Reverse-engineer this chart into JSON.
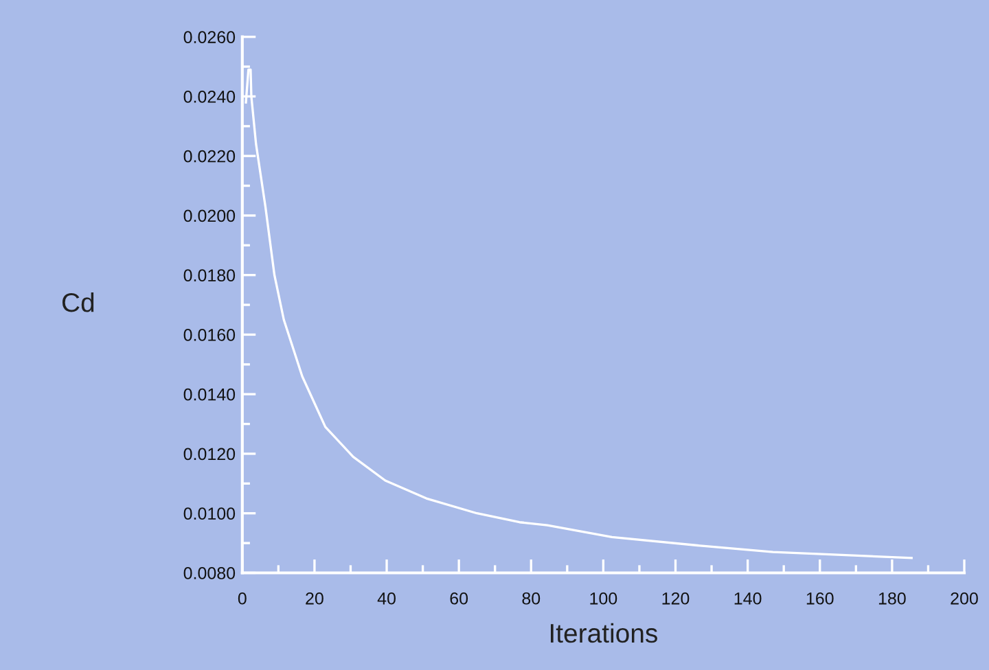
{
  "chart_data": {
    "type": "line",
    "xlabel": "Iterations",
    "ylabel": "Cd",
    "color": "#ffffff",
    "x": [
      1,
      1.7,
      2.3,
      2.5,
      3.8,
      6.4,
      8.9,
      11.5,
      16.6,
      23,
      30.7,
      39.6,
      51,
      65,
      76.8,
      84.5,
      102.4,
      127.9,
      147,
      166,
      185.4
    ],
    "values": [
      0.0238,
      0.0249,
      0.0249,
      0.024,
      0.0224,
      0.0203,
      0.018,
      0.0165,
      0.0146,
      0.0129,
      0.0119,
      0.0111,
      0.0105,
      0.01,
      0.0097,
      0.0096,
      0.0092,
      0.0089,
      0.0087,
      0.0086,
      0.0085
    ],
    "xlim": [
      0,
      200
    ],
    "xticks": [
      0,
      20,
      40,
      60,
      80,
      100,
      120,
      140,
      160,
      180,
      200
    ],
    "ylim": [
      0.008,
      0.026
    ],
    "yticks": [
      {
        "value": 0.008,
        "label": "0.0080"
      },
      {
        "value": 0.01,
        "label": "0.0100"
      },
      {
        "value": 0.012,
        "label": "0.0120"
      },
      {
        "value": 0.014,
        "label": "0.0140"
      },
      {
        "value": 0.016,
        "label": "0.0160"
      },
      {
        "value": 0.018,
        "label": "0.0180"
      },
      {
        "value": 0.02,
        "label": "0.0200"
      },
      {
        "value": 0.022,
        "label": "0.0220"
      },
      {
        "value": 0.024,
        "label": "0.0240"
      },
      {
        "value": 0.026,
        "label": "0.0260"
      }
    ],
    "grid": false,
    "legend": false,
    "marker": "none",
    "line_style": "solid"
  }
}
